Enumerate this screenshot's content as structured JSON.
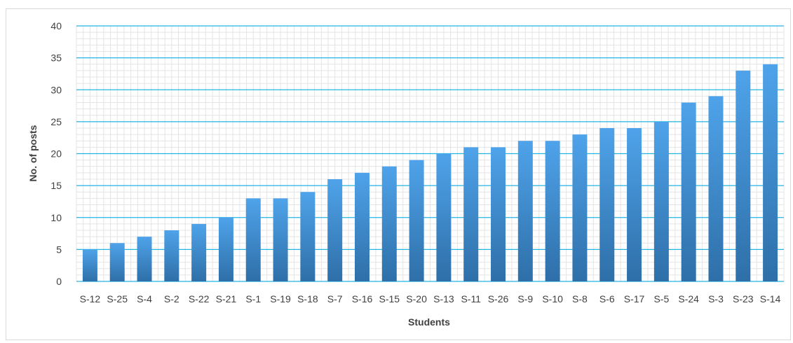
{
  "chart_data": {
    "type": "bar",
    "title": "",
    "xlabel": "Students",
    "ylabel": "No. of posts",
    "ylim": [
      0,
      40
    ],
    "ytick_step": 5,
    "grid": true,
    "legend": "none",
    "categories": [
      "S-12",
      "S-25",
      "S-4",
      "S-2",
      "S-22",
      "S-21",
      "S-1",
      "S-19",
      "S-18",
      "S-7",
      "S-16",
      "S-15",
      "S-20",
      "S-13",
      "S-11",
      "S-26",
      "S-9",
      "S-10",
      "S-8",
      "S-6",
      "S-17",
      "S-5",
      "S-24",
      "S-3",
      "S-23",
      "S-14"
    ],
    "values": [
      5,
      6,
      7,
      8,
      9,
      10,
      13,
      13,
      14,
      16,
      17,
      18,
      19,
      20,
      21,
      21,
      22,
      22,
      23,
      24,
      24,
      25,
      28,
      29,
      33,
      34
    ],
    "colors": {
      "bar_top": "#4fa3ea",
      "bar_bottom": "#2e6fa8",
      "major_grid": "#23b4e6",
      "minor_grid": "#e4e4e4"
    }
  }
}
